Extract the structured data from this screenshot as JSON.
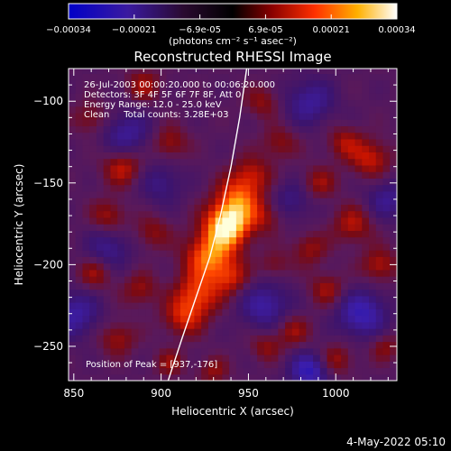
{
  "chart_data": {
    "type": "heatmap",
    "title": "Reconstructed RHESSI Image",
    "xlabel": "Heliocentric X (arcsec)",
    "ylabel": "Heliocentric Y (arcsec)",
    "xlim": [
      847,
      1035
    ],
    "ylim": [
      -271,
      -80
    ],
    "x_ticks": [
      850,
      900,
      950,
      1000
    ],
    "y_ticks": [
      -100,
      -150,
      -200,
      -250
    ],
    "colorbar": {
      "ticks": [
        "-0.00034",
        "-0.00021",
        "-6.9e-05",
        "6.9e-05",
        "0.00021",
        "0.00034"
      ],
      "unit_label": "(photons cm⁻² s⁻¹ asec⁻²)",
      "range": [
        -0.00034,
        0.00034
      ]
    },
    "info_lines": [
      "26-Jul-2003 00:00:20.000 to 00:06:20.000",
      "Detectors: 3F 4F 5F 6F 7F 8F, Att 0",
      "Energy Range: 12.0 - 25.0 keV",
      "Clean     Total counts: 3.28E+03"
    ],
    "peak_label": "Position of Peak = [937,-176]",
    "peak": [
      937,
      -176
    ],
    "limb_curve": [
      [
        904,
        -271
      ],
      [
        912,
        -245
      ],
      [
        920,
        -220
      ],
      [
        928,
        -195
      ],
      [
        934,
        -170
      ],
      [
        940,
        -140
      ],
      [
        945,
        -110
      ],
      [
        949,
        -80
      ]
    ],
    "blobs": [
      {
        "x": 938,
        "y": -176,
        "amp": 1.0,
        "r": 9
      },
      {
        "x": 928,
        "y": -195,
        "amp": 0.72,
        "r": 10
      },
      {
        "x": 944,
        "y": -160,
        "amp": 0.6,
        "r": 9
      },
      {
        "x": 921,
        "y": -218,
        "amp": 0.55,
        "r": 9
      },
      {
        "x": 913,
        "y": -232,
        "amp": 0.45,
        "r": 8
      },
      {
        "x": 952,
        "y": -145,
        "amp": 0.4,
        "r": 8
      },
      {
        "x": 940,
        "y": -208,
        "amp": 0.38,
        "r": 7
      },
      {
        "x": 878,
        "y": -140,
        "amp": 0.45,
        "r": 8
      },
      {
        "x": 905,
        "y": -125,
        "amp": 0.35,
        "r": 7
      },
      {
        "x": 890,
        "y": -90,
        "amp": 0.35,
        "r": 7
      },
      {
        "x": 1020,
        "y": -135,
        "amp": 0.45,
        "r": 8
      },
      {
        "x": 1005,
        "y": -125,
        "amp": 0.35,
        "r": 7
      },
      {
        "x": 990,
        "y": -150,
        "amp": 0.35,
        "r": 7
      },
      {
        "x": 1010,
        "y": -175,
        "amp": 0.4,
        "r": 8
      },
      {
        "x": 985,
        "y": -190,
        "amp": 0.32,
        "r": 7
      },
      {
        "x": 1025,
        "y": -200,
        "amp": 0.4,
        "r": 7
      },
      {
        "x": 995,
        "y": -215,
        "amp": 0.35,
        "r": 7
      },
      {
        "x": 975,
        "y": -240,
        "amp": 0.35,
        "r": 7
      },
      {
        "x": 960,
        "y": -250,
        "amp": 0.3,
        "r": 6
      },
      {
        "x": 1000,
        "y": -258,
        "amp": 0.35,
        "r": 7
      },
      {
        "x": 1028,
        "y": -250,
        "amp": 0.3,
        "r": 6
      },
      {
        "x": 870,
        "y": -170,
        "amp": 0.35,
        "r": 7
      },
      {
        "x": 862,
        "y": -205,
        "amp": 0.35,
        "r": 7
      },
      {
        "x": 895,
        "y": -180,
        "amp": 0.3,
        "r": 7
      },
      {
        "x": 888,
        "y": -215,
        "amp": 0.32,
        "r": 7
      },
      {
        "x": 875,
        "y": -245,
        "amp": 0.35,
        "r": 7
      },
      {
        "x": 905,
        "y": -260,
        "amp": 0.3,
        "r": 6
      },
      {
        "x": 930,
        "y": -265,
        "amp": 0.3,
        "r": 6
      },
      {
        "x": 958,
        "y": -100,
        "amp": 0.3,
        "r": 7
      },
      {
        "x": 968,
        "y": -125,
        "amp": 0.3,
        "r": 7
      },
      {
        "x": 860,
        "y": -110,
        "amp": 0.3,
        "r": 7
      },
      {
        "x": 965,
        "y": -200,
        "amp": 0.25,
        "r": 6
      },
      {
        "x": 960,
        "y": -170,
        "amp": 0.3,
        "r": 7
      },
      {
        "x": 850,
        "y": -230,
        "amp": -0.45,
        "r": 10
      },
      {
        "x": 1015,
        "y": -230,
        "amp": -0.55,
        "r": 10
      },
      {
        "x": 960,
        "y": -225,
        "amp": -0.45,
        "r": 10
      },
      {
        "x": 880,
        "y": -120,
        "amp": -0.4,
        "r": 10
      },
      {
        "x": 985,
        "y": -100,
        "amp": -0.4,
        "r": 10
      },
      {
        "x": 870,
        "y": -190,
        "amp": -0.35,
        "r": 9
      },
      {
        "x": 1030,
        "y": -160,
        "amp": -0.35,
        "r": 9
      },
      {
        "x": 985,
        "y": -265,
        "amp": -0.6,
        "r": 8
      },
      {
        "x": 900,
        "y": -150,
        "amp": -0.3,
        "r": 9
      },
      {
        "x": 975,
        "y": -160,
        "amp": -0.3,
        "r": 9
      }
    ]
  },
  "footer": {
    "timestamp": "4-May-2022 05:10"
  },
  "colors": {
    "background": "#000000",
    "foreground": "#ffffff",
    "limb": "#ffffff"
  }
}
